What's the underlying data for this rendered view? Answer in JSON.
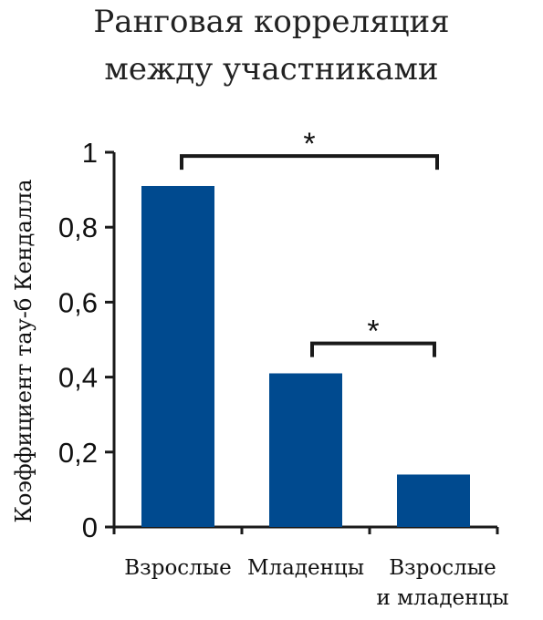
{
  "chart_data": {
    "type": "bar",
    "title_lines": [
      "Ранговая корреляция",
      "между участниками"
    ],
    "ylabel": "Коэффициент тау-б Кендалла",
    "xlabel": "",
    "categories": [
      [
        "Взрослые"
      ],
      [
        "Младенцы"
      ],
      [
        "Взрослые",
        "и младенцы"
      ]
    ],
    "values": [
      0.91,
      0.41,
      0.14
    ],
    "ylim": [
      0,
      1
    ],
    "yticks": [
      0,
      0.2,
      0.4,
      0.6,
      0.8,
      1
    ],
    "ytick_labels": [
      "0",
      "0,2",
      "0,4",
      "0,6",
      "0,8",
      "1"
    ],
    "bar_color": "#004a8f",
    "grid": false,
    "annotations": [
      {
        "from": 0,
        "to": 2,
        "label": "*",
        "level": 0.99
      },
      {
        "from": 1,
        "to": 2,
        "label": "*",
        "level": 0.49
      }
    ]
  }
}
